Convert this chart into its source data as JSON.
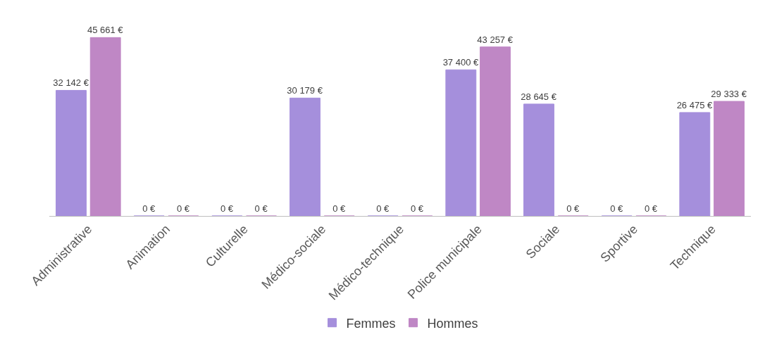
{
  "chart_data": {
    "type": "bar",
    "categories": [
      "Administrative",
      "Animation",
      "Culturelle",
      "Médico-sociale",
      "Médico-technique",
      "Police municipale",
      "Sociale",
      "Sportive",
      "Technique"
    ],
    "series": [
      {
        "name": "Femmes",
        "color": "#a58fdc",
        "values": [
          32142,
          0,
          0,
          30179,
          0,
          37400,
          28645,
          0,
          26475
        ],
        "value_labels": [
          "32 142 €",
          "0 €",
          "0 €",
          "30 179 €",
          "0 €",
          "37 400 €",
          "28 645 €",
          "0 €",
          "26 475 €"
        ]
      },
      {
        "name": "Hommes",
        "color": "#bf87c5",
        "values": [
          45661,
          0,
          0,
          0,
          0,
          43257,
          0,
          0,
          29333
        ],
        "value_labels": [
          "45 661 €",
          "0 €",
          "0 €",
          "0 €",
          "0 €",
          "43 257 €",
          "0 €",
          "0 €",
          "29 333 €"
        ]
      }
    ],
    "legend": "bottom"
  }
}
